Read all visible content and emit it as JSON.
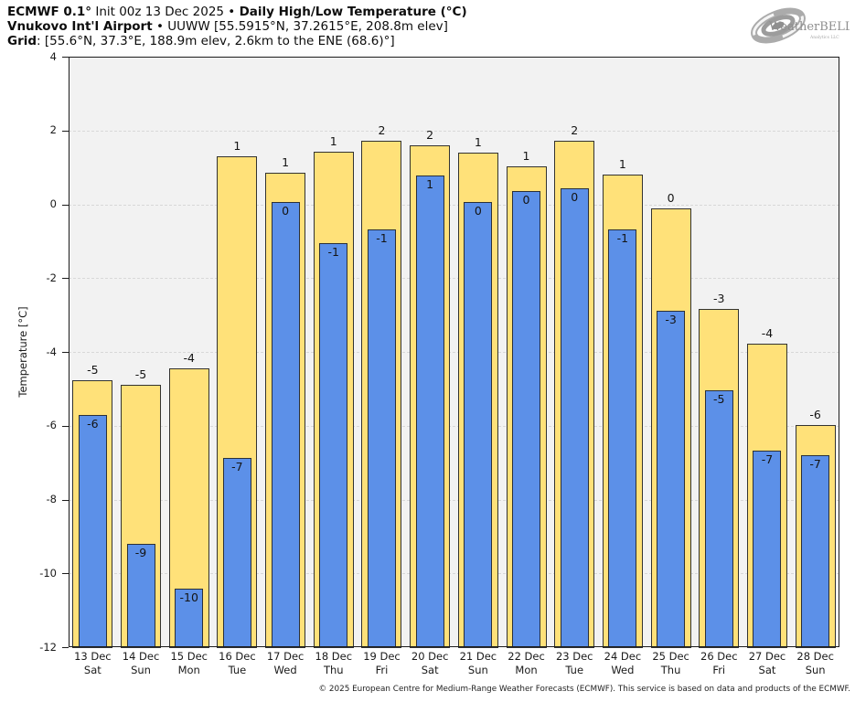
{
  "header": {
    "line1": {
      "b1": "ECMWF 0.1°",
      "n1": " Init 00z 13 Dec 2025 • ",
      "b2": "Daily High/Low Temperature (°C)"
    },
    "line2": {
      "b1": "Vnukovo Int'l Airport",
      "n1": " • UUWW [55.5915°N, 37.2615°E, 208.8m elev]"
    },
    "line3": {
      "b1": "Grid",
      "n1": ": [55.6°N, 37.3°E, 188.9m elev, 2.6km to the ENE (68.6)°]"
    }
  },
  "logo": {
    "text_main": "WeatherBELL",
    "text_sub": "Analytics LLC"
  },
  "footer": "© 2025 European Centre for Medium-Range Weather Forecasts (ECMWF). This service is based on data and products of the ECMWF.",
  "chart_data": {
    "type": "bar",
    "title": "ECMWF 0.1° Init 00z 13 Dec 2025 • Daily High/Low Temperature (°C)",
    "subtitle": "Vnukovo Int'l Airport • UUWW [55.5915°N, 37.2615°E, 208.8m elev]",
    "xlabel": "",
    "ylabel": "Temperature [°C]",
    "ylim": [
      -12,
      4
    ],
    "yticks": [
      4,
      2,
      0,
      -2,
      -4,
      -6,
      -8,
      -10,
      -12
    ],
    "grid": true,
    "legend_position": "none",
    "bar_base": -12,
    "categories": [
      "13 Dec",
      "14 Dec",
      "15 Dec",
      "16 Dec",
      "17 Dec",
      "18 Dec",
      "19 Dec",
      "20 Dec",
      "21 Dec",
      "22 Dec",
      "23 Dec",
      "24 Dec",
      "25 Dec",
      "26 Dec",
      "27 Dec",
      "28 Dec"
    ],
    "weekdays": [
      "Sat",
      "Sun",
      "Mon",
      "Tue",
      "Wed",
      "Thu",
      "Fri",
      "Sat",
      "Sun",
      "Mon",
      "Tue",
      "Wed",
      "Thu",
      "Fri",
      "Sat",
      "Sun"
    ],
    "series": [
      {
        "name": "daily-high",
        "color": "#ffe179",
        "values": [
          -4.78,
          -4.9,
          -4.45,
          1.31,
          0.85,
          1.42,
          1.72,
          1.6,
          1.39,
          1.04,
          1.72,
          0.8,
          -0.12,
          -2.84,
          -3.77,
          -5.99
        ],
        "labels": [
          "-5",
          "-5",
          "-4",
          "1",
          "1",
          "1",
          "2",
          "2",
          "1",
          "1",
          "2",
          "1",
          "0",
          "-3",
          "-4",
          "-6"
        ]
      },
      {
        "name": "daily-low",
        "color": "#5c90e8",
        "values": [
          -5.7,
          -9.21,
          -10.41,
          -6.88,
          0.07,
          -1.06,
          -0.67,
          0.78,
          0.05,
          0.36,
          0.44,
          -0.69,
          -2.88,
          -5.03,
          -6.67,
          -6.79
        ],
        "labels": [
          "-6",
          "-9",
          "-10",
          "-7",
          "0",
          "-1",
          "-1",
          "1",
          "0",
          "0",
          "0",
          "-1",
          "-3",
          "-5",
          "-7",
          "-7"
        ]
      }
    ]
  }
}
